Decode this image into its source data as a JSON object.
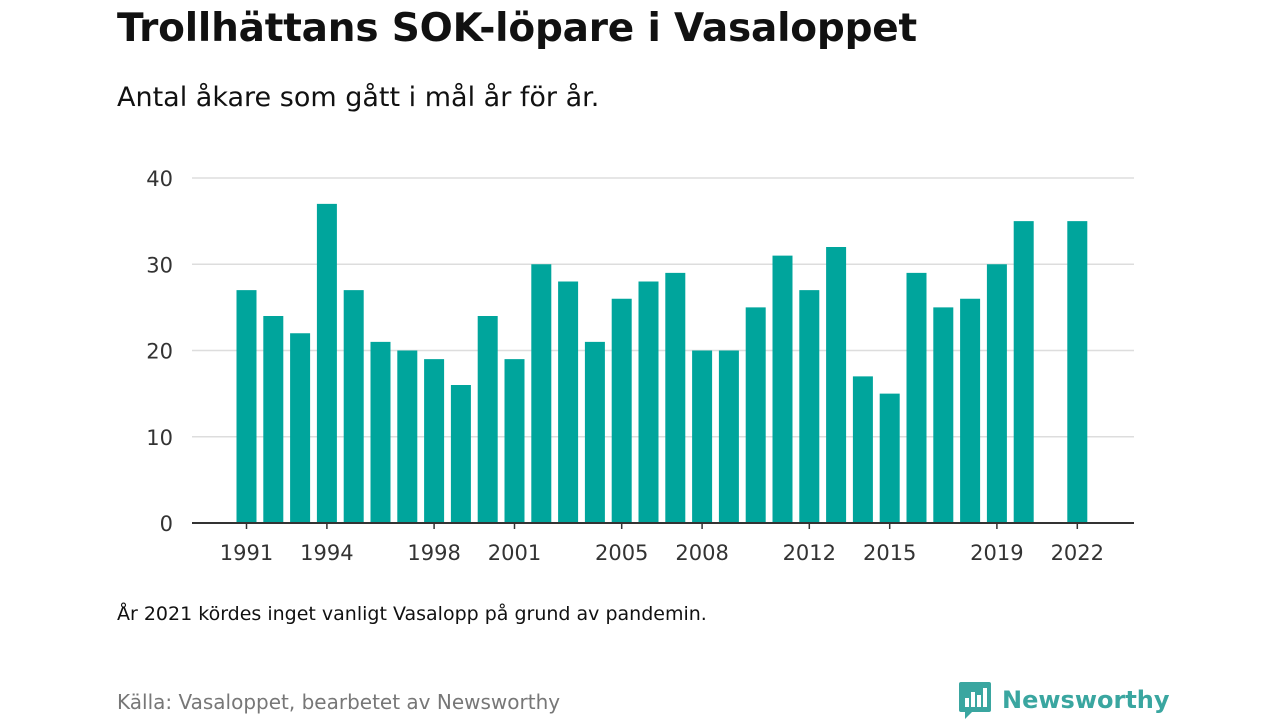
{
  "header": {
    "title": "Trollhättans SOK-löpare i Vasaloppet",
    "subtitle": "Antal åkare som gått i mål år för år."
  },
  "footer": {
    "note": "År 2021 kördes inget vanligt Vasalopp på grund av pandemin.",
    "source": "Källa: Vasaloppet, bearbetet av Newsworthy",
    "brand": "Newsworthy"
  },
  "colors": {
    "bar": "#00a59c",
    "grid": "#dddddd",
    "axis": "#333333",
    "brand": "#3aa6a0"
  },
  "chart_data": {
    "type": "bar",
    "title": "Trollhättans SOK-löpare i Vasaloppet",
    "subtitle": "Antal åkare som gått i mål år för år.",
    "xlabel": "",
    "ylabel": "",
    "ylim": [
      0,
      40
    ],
    "yticks": [
      0,
      10,
      20,
      30,
      40
    ],
    "xtick_labels": [
      "1991",
      "1994",
      "1998",
      "2001",
      "2005",
      "2008",
      "2012",
      "2015",
      "2019",
      "2022"
    ],
    "grid": true,
    "categories": [
      1991,
      1992,
      1993,
      1994,
      1995,
      1996,
      1997,
      1998,
      1999,
      2000,
      2001,
      2002,
      2003,
      2004,
      2005,
      2006,
      2007,
      2008,
      2009,
      2010,
      2011,
      2012,
      2013,
      2014,
      2015,
      2016,
      2017,
      2018,
      2019,
      2020,
      2021,
      2022
    ],
    "values": [
      27,
      24,
      22,
      37,
      27,
      21,
      20,
      19,
      16,
      24,
      19,
      30,
      28,
      21,
      26,
      28,
      29,
      20,
      20,
      25,
      31,
      27,
      32,
      17,
      15,
      29,
      25,
      26,
      30,
      35,
      null,
      35
    ]
  }
}
